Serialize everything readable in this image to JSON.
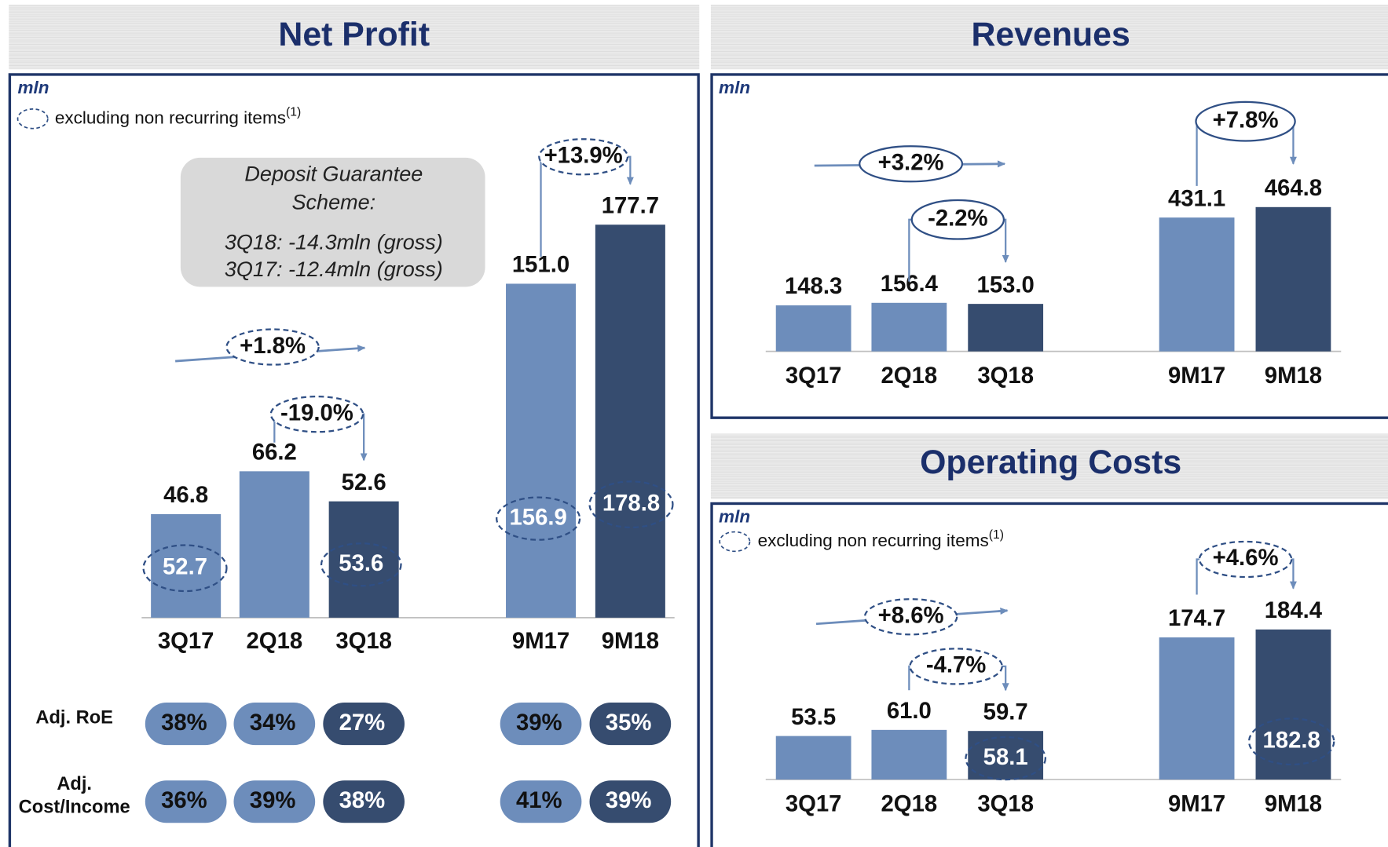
{
  "chart_data": [
    {
      "type": "bar",
      "title": "Net Profit",
      "unit": "mln",
      "note": "excluding non recurring items",
      "note_ref": "(1)",
      "categories": [
        "3Q17",
        "2Q18",
        "3Q18",
        "9M17",
        "9M18"
      ],
      "values": [
        46.8,
        66.2,
        52.6,
        151.0,
        177.7
      ],
      "value_labels": [
        "46.8",
        "66.2",
        "52.6",
        "151.0",
        "177.7"
      ],
      "adjusted_values": [
        52.7,
        null,
        53.6,
        156.9,
        178.8
      ],
      "adjusted_labels": [
        "52.7",
        null,
        "53.6",
        "156.9",
        "178.8"
      ],
      "colors": [
        "#6d8dbb",
        "#6d8dbb",
        "#364c6f",
        "#6d8dbb",
        "#364c6f"
      ],
      "annotations": [
        "+1.8%",
        "-19.0%",
        "+13.9%"
      ],
      "callout": [
        "Deposit Guarantee",
        "Scheme:",
        "3Q18: -14.3mln (gross)",
        "3Q17: -12.4mln (gross)"
      ],
      "ratios": [
        {
          "label_lines": [
            "Adj. RoE"
          ],
          "values": [
            38,
            34,
            27,
            39,
            35
          ],
          "value_labels": [
            "38%",
            "34%",
            "27%",
            "39%",
            "35%"
          ]
        },
        {
          "label_lines": [
            "Adj.",
            "Cost/Income"
          ],
          "values": [
            36,
            39,
            38,
            41,
            39
          ],
          "value_labels": [
            "36%",
            "39%",
            "38%",
            "41%",
            "39%"
          ]
        }
      ]
    },
    {
      "type": "bar",
      "title": "Revenues",
      "unit": "mln",
      "categories": [
        "3Q17",
        "2Q18",
        "3Q18",
        "9M17",
        "9M18"
      ],
      "values": [
        148.3,
        156.4,
        153.0,
        431.1,
        464.8
      ],
      "value_labels": [
        "148.3",
        "156.4",
        "153.0",
        "431.1",
        "464.8"
      ],
      "colors": [
        "#6d8dbb",
        "#6d8dbb",
        "#364c6f",
        "#6d8dbb",
        "#364c6f"
      ],
      "annotations": [
        "+3.2%",
        "-2.2%",
        "+7.8%"
      ]
    },
    {
      "type": "bar",
      "title": "Operating Costs",
      "unit": "mln",
      "note": "excluding non recurring items",
      "note_ref": "(1)",
      "categories": [
        "3Q17",
        "2Q18",
        "3Q18",
        "9M17",
        "9M18"
      ],
      "values": [
        53.5,
        61.0,
        59.7,
        174.7,
        184.4
      ],
      "value_labels": [
        "53.5",
        "61.0",
        "59.7",
        "174.7",
        "184.4"
      ],
      "adjusted_values": [
        null,
        null,
        58.1,
        null,
        182.8
      ],
      "adjusted_labels": [
        null,
        null,
        "58.1",
        null,
        "182.8"
      ],
      "colors": [
        "#6d8dbb",
        "#6d8dbb",
        "#364c6f",
        "#6d8dbb",
        "#364c6f"
      ],
      "annotations": [
        "+8.6%",
        "-4.7%",
        "+4.6%"
      ]
    }
  ]
}
